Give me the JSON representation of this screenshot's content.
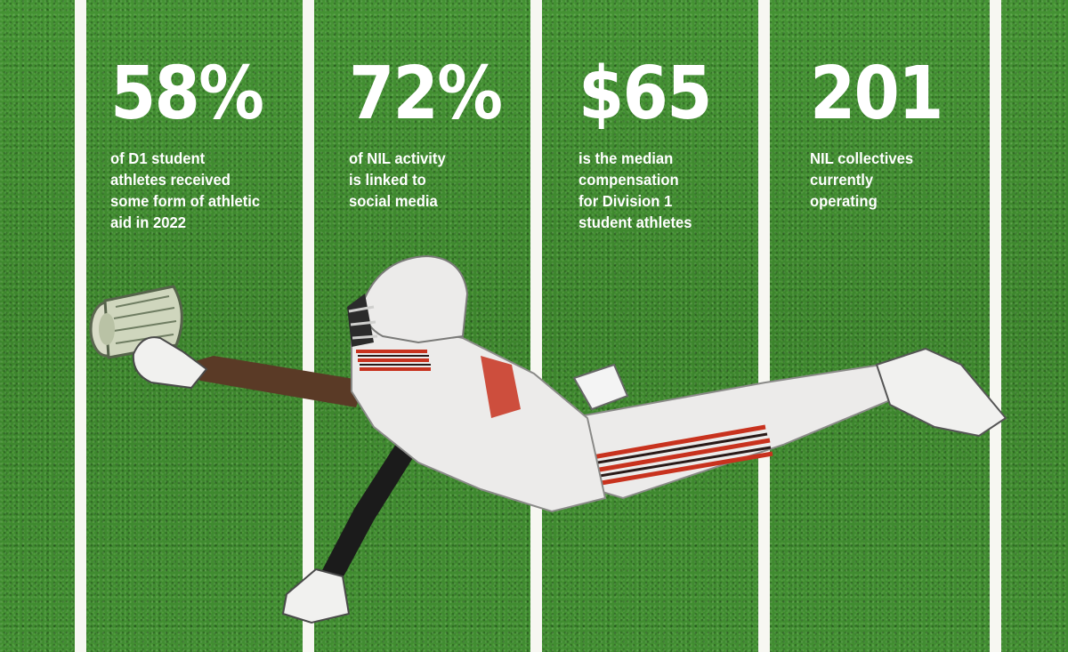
{
  "stats": [
    {
      "value": "58%",
      "lines": [
        "of D1 student",
        "athletes received",
        "some form of athletic",
        "aid in 2022"
      ]
    },
    {
      "value": "72%",
      "lines": [
        "of NIL activity",
        "is linked to",
        "social media"
      ]
    },
    {
      "value": "$65",
      "lines": [
        "is the median",
        "compensation",
        "for Division 1",
        "student athletes"
      ]
    },
    {
      "value": "201",
      "lines": [
        "NIL collectives",
        "currently",
        "operating"
      ]
    }
  ],
  "colors": {
    "turf": "#3f8a2f",
    "yard_line": "#f7f7f2",
    "uniform_stripe": "#c8321e",
    "uniform_dark_stripe": "#2a1a18",
    "uniform": "#ecebea"
  },
  "illustration": "diving-football-player-catching-money-roll"
}
